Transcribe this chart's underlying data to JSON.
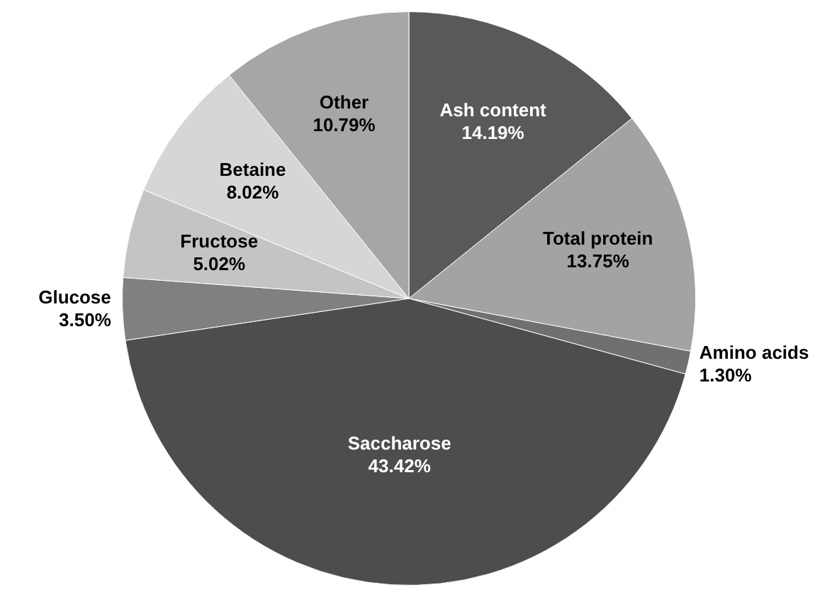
{
  "chart_data": {
    "type": "pie",
    "categories": [
      "Ash content",
      "Total protein",
      "Amino acids",
      "Saccharose",
      "Glucose",
      "Fructose",
      "Betaine",
      "Other"
    ],
    "values": [
      14.19,
      13.75,
      1.3,
      43.42,
      3.5,
      5.02,
      8.02,
      10.79
    ],
    "value_labels": [
      "14.19%",
      "13.75%",
      "1.30%",
      "43.42%",
      "3.50%",
      "5.02%",
      "8.02%",
      "10.79%"
    ],
    "colors": [
      "#595959",
      "#a3a3a3",
      "#707070",
      "#4d4d4d",
      "#808080",
      "#c4c4c4",
      "#d6d6d6",
      "#a6a6a6"
    ],
    "legend": false
  }
}
